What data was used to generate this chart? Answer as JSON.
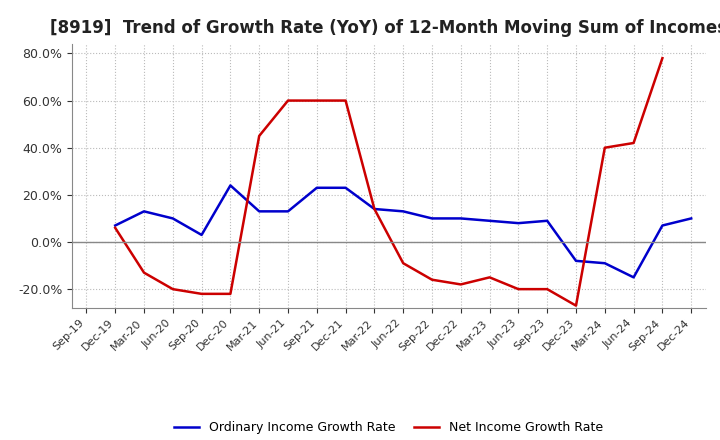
{
  "title": "[8919]  Trend of Growth Rate (YoY) of 12-Month Moving Sum of Incomes",
  "title_fontsize": 12,
  "ylim": [
    -0.28,
    0.84
  ],
  "yticks": [
    -0.2,
    0.0,
    0.2,
    0.4,
    0.6,
    0.8
  ],
  "background_color": "#ffffff",
  "grid_color": "#bbbbbb",
  "ordinary_color": "#0000cc",
  "net_color": "#cc0000",
  "legend_ordinary": "Ordinary Income Growth Rate",
  "legend_net": "Net Income Growth Rate",
  "x_labels": [
    "Sep-19",
    "Dec-19",
    "Mar-20",
    "Jun-20",
    "Sep-20",
    "Dec-20",
    "Mar-21",
    "Jun-21",
    "Sep-21",
    "Dec-21",
    "Mar-22",
    "Jun-22",
    "Sep-22",
    "Dec-22",
    "Mar-23",
    "Jun-23",
    "Sep-23",
    "Dec-23",
    "Mar-24",
    "Jun-24",
    "Sep-24",
    "Dec-24"
  ],
  "ordinary_income": [
    null,
    0.07,
    0.13,
    0.1,
    0.03,
    0.24,
    0.13,
    0.13,
    0.23,
    0.23,
    0.14,
    0.13,
    0.1,
    0.1,
    0.09,
    0.08,
    0.09,
    -0.08,
    -0.09,
    -0.15,
    0.07,
    0.1
  ],
  "net_income": [
    null,
    0.06,
    -0.13,
    -0.2,
    -0.22,
    -0.22,
    0.45,
    0.6,
    0.6,
    0.6,
    0.14,
    -0.09,
    -0.16,
    -0.18,
    -0.15,
    -0.2,
    -0.2,
    -0.27,
    0.4,
    0.42,
    0.78,
    null
  ]
}
